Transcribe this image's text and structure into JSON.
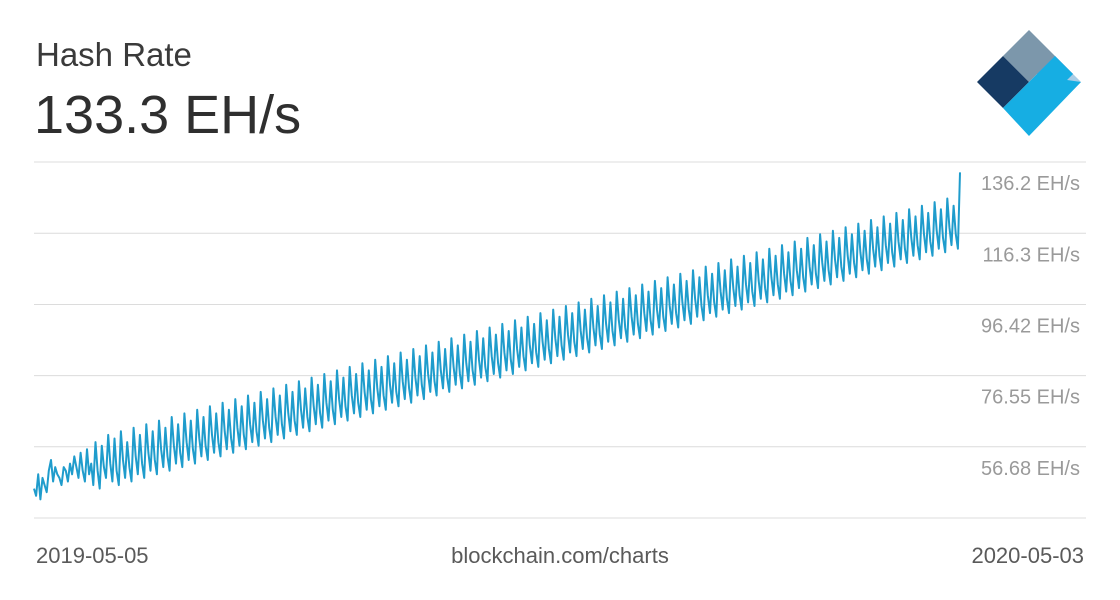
{
  "header": {
    "title": "Hash Rate",
    "current_value": "133.3 EH/s"
  },
  "footer": {
    "start_date": "2019-05-05",
    "source": "blockchain.com/charts",
    "end_date": "2020-05-03"
  },
  "colors": {
    "line": "#1f9ccc",
    "grid": "#dcdcdc",
    "logo_dark": "#163a63",
    "logo_blue": "#2a5bbf",
    "logo_cyan": "#16aee3",
    "logo_gray": "#7c97ab",
    "logo_light": "#a9cde6"
  },
  "logo": {
    "icon": "blockchain-logo-icon"
  },
  "chart_data": {
    "type": "line",
    "title": "Hash Rate",
    "x_range": [
      "2019-05-05",
      "2020-05-03"
    ],
    "y_ticks": [
      {
        "value": 56.68,
        "label": "56.68 EH/s"
      },
      {
        "value": 76.55,
        "label": "76.55 EH/s"
      },
      {
        "value": 96.42,
        "label": "96.42 EH/s"
      },
      {
        "value": 116.3,
        "label": "116.3 EH/s"
      },
      {
        "value": 136.2,
        "label": "136.2 EH/s"
      }
    ],
    "ylim": [
      36.8,
      136.2
    ],
    "grid": true,
    "series": [
      {
        "values": [
          45,
          43,
          49,
          42,
          48,
          46,
          44,
          50,
          53,
          47,
          51,
          49,
          48,
          46,
          51,
          50,
          47,
          52,
          49,
          54,
          51,
          48,
          55,
          50,
          47,
          56,
          49,
          52,
          46,
          58,
          50,
          45,
          57,
          51,
          48,
          60,
          52,
          47,
          59,
          50,
          46,
          61,
          53,
          48,
          58,
          51,
          47,
          62,
          54,
          49,
          60,
          52,
          48,
          63,
          55,
          50,
          61,
          53,
          49,
          64,
          56,
          51,
          62,
          54,
          50,
          65,
          57,
          52,
          63,
          55,
          51,
          66,
          58,
          53,
          64,
          56,
          52,
          67,
          59,
          54,
          65,
          57,
          53,
          68,
          60,
          55,
          66,
          58,
          54,
          69,
          61,
          56,
          67,
          59,
          55,
          70,
          62,
          57,
          68,
          60,
          56,
          71,
          63,
          58,
          69,
          61,
          57,
          72,
          64,
          59,
          70,
          62,
          58,
          73,
          65,
          60,
          71,
          63,
          59,
          74,
          66,
          61,
          72,
          64,
          60,
          75,
          67,
          62,
          73,
          65,
          61,
          76,
          68,
          63,
          74,
          66,
          62,
          77,
          69,
          64,
          75,
          67,
          63,
          78,
          70,
          65,
          76,
          68,
          64,
          79,
          71,
          66,
          77,
          69,
          65,
          80,
          72,
          67,
          78,
          70,
          66,
          81,
          73,
          68,
          79,
          71,
          67,
          82,
          74,
          69,
          80,
          72,
          68,
          83,
          75,
          70,
          81,
          73,
          69,
          84,
          76,
          71,
          82,
          74,
          70,
          85,
          77,
          72,
          83,
          75,
          71,
          86,
          78,
          73,
          84,
          76,
          72,
          87,
          79,
          74,
          85,
          77,
          73,
          88,
          80,
          75,
          86,
          78,
          74,
          89,
          81,
          76,
          87,
          79,
          75,
          90,
          82,
          77,
          88,
          80,
          76,
          91,
          83,
          78,
          89,
          81,
          77,
          92,
          84,
          79,
          90,
          82,
          78,
          93,
          85,
          80,
          91,
          83,
          79,
          94,
          86,
          81,
          92,
          84,
          80,
          95,
          87,
          82,
          93,
          85,
          81,
          96,
          88,
          83,
          94,
          86,
          82,
          97,
          89,
          84,
          95,
          87,
          83,
          98,
          90,
          85,
          96,
          88,
          84,
          99,
          91,
          86,
          97,
          89,
          85,
          100,
          92,
          87,
          98,
          90,
          86,
          101,
          93,
          88,
          99,
          91,
          87,
          102,
          94,
          89,
          100,
          92,
          88,
          103,
          95,
          90,
          101,
          93,
          89,
          104,
          96,
          91,
          102,
          94,
          90,
          105,
          97,
          92,
          103,
          95,
          91,
          106,
          98,
          93,
          104,
          96,
          92,
          107,
          99,
          94,
          105,
          97,
          93,
          108,
          100,
          95,
          106,
          98,
          94,
          109,
          101,
          96,
          107,
          99,
          95,
          110,
          102,
          97,
          108,
          100,
          96,
          111,
          103,
          98,
          109,
          101,
          97,
          112,
          104,
          99,
          110,
          102,
          98,
          113,
          105,
          100,
          111,
          103,
          99,
          114,
          106,
          101,
          112,
          104,
          100,
          115,
          107,
          102,
          113,
          105,
          101,
          116,
          108,
          103,
          114,
          106,
          102,
          117,
          109,
          104,
          115,
          107,
          103,
          118,
          110,
          105,
          116,
          108,
          104,
          119,
          111,
          106,
          117,
          109,
          105,
          120,
          112,
          107,
          118,
          110,
          106,
          121,
          113,
          108,
          119,
          111,
          107,
          122,
          114,
          109,
          120,
          112,
          108,
          123,
          115,
          110,
          121,
          113,
          109,
          124,
          116,
          111,
          122,
          114,
          110,
          125,
          117,
          112,
          123,
          115,
          111,
          126,
          118,
          113,
          124,
          116,
          112,
          133.3
        ]
      }
    ]
  }
}
